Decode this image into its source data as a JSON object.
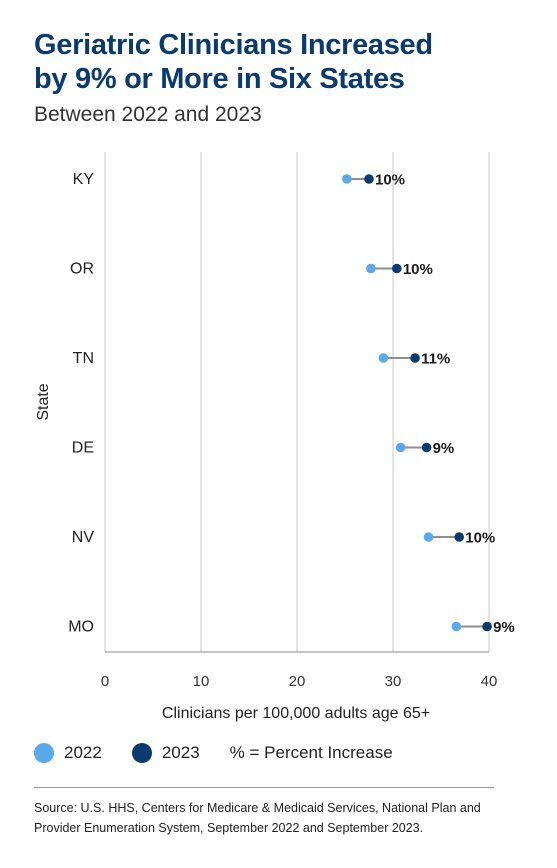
{
  "chart_data": {
    "type": "dumbbell",
    "title_line1": "Geriatric Clinicians Increased",
    "title_line2": "by 9% or More in Six States",
    "subtitle": "Between 2022 and 2023",
    "xlabel": "Clinicians per 100,000 adults age 65+",
    "ylabel": "State",
    "xlim": [
      0,
      40
    ],
    "xticks": [
      "0",
      "10",
      "20",
      "30",
      "40"
    ],
    "grid": true,
    "categories": [
      "KY",
      "OR",
      "TN",
      "DE",
      "NV",
      "MO"
    ],
    "series": [
      {
        "name": "2022",
        "color": "#5aa9ea",
        "values": [
          25.2,
          27.7,
          29.0,
          30.8,
          33.7,
          36.6
        ]
      },
      {
        "name": "2023",
        "color": "#0b3a6e",
        "values": [
          27.5,
          30.4,
          32.3,
          33.5,
          36.9,
          39.8
        ]
      }
    ],
    "labels": [
      "10%",
      "10%",
      "11%",
      "9%",
      "10%",
      "9%"
    ]
  },
  "legend": {
    "item_2022": "2022",
    "item_2023": "2023",
    "note": "% = Percent Increase"
  },
  "source": "Source: U.S. HHS, Centers for Medicare & Medicaid Services, National Plan and Provider Enumeration System, September 2022 and September 2023."
}
